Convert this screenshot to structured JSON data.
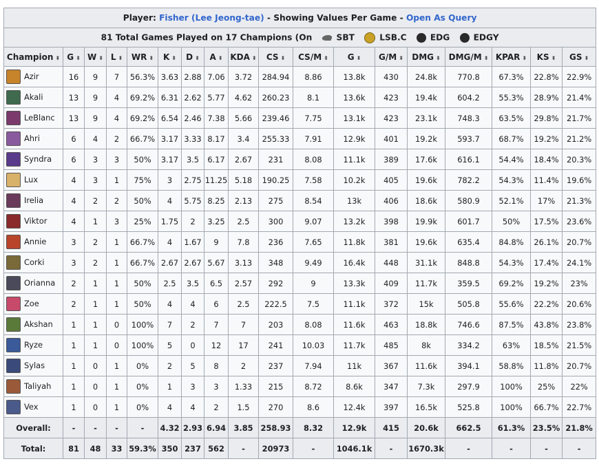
{
  "header": {
    "prefix": "Player: ",
    "player": "Fisher (Lee Jeong-tae)",
    "middle": " - Showing Values Per Game - ",
    "query_link": "Open As Query"
  },
  "summary": {
    "text": "81 Total Games Played on 17 Champions (On",
    "teams": [
      {
        "name": "SBT",
        "color": "#6b6b6b",
        "icon": "sbt-logo"
      },
      {
        "name": "LSB.C",
        "color": "#c9a227",
        "icon": "lsb-logo"
      },
      {
        "name": "EDG",
        "color": "#2a2a2a",
        "icon": "edg-logo"
      },
      {
        "name": "EDGY",
        "color": "#2a2a2a",
        "icon": "edgy-logo"
      }
    ]
  },
  "columns": [
    "Champion",
    "G",
    "W",
    "L",
    "WR",
    "K",
    "D",
    "A",
    "KDA",
    "CS",
    "CS/M",
    "G",
    "G/M",
    "DMG",
    "DMG/M",
    "KPAR",
    "KS",
    "GS"
  ],
  "rows": [
    {
      "champion": "Azir",
      "icon_color": "#c8842a",
      "stats": [
        "16",
        "9",
        "7",
        "56.3%",
        "3.63",
        "2.88",
        "7.06",
        "3.72",
        "284.94",
        "8.86",
        "13.8k",
        "430",
        "24.8k",
        "770.8",
        "67.3%",
        "22.8%",
        "22.9%"
      ]
    },
    {
      "champion": "Akali",
      "icon_color": "#3f6a4e",
      "stats": [
        "13",
        "9",
        "4",
        "69.2%",
        "6.31",
        "2.62",
        "5.77",
        "4.62",
        "260.23",
        "8.1",
        "13.6k",
        "423",
        "19.4k",
        "604.2",
        "55.3%",
        "28.9%",
        "21.4%"
      ]
    },
    {
      "champion": "LeBlanc",
      "icon_color": "#7a3a6b",
      "stats": [
        "13",
        "9",
        "4",
        "69.2%",
        "6.54",
        "2.46",
        "7.38",
        "5.66",
        "239.46",
        "7.75",
        "13.1k",
        "423",
        "23.1k",
        "748.3",
        "63.5%",
        "29.8%",
        "21.7%"
      ]
    },
    {
      "champion": "Ahri",
      "icon_color": "#8a5a9e",
      "stats": [
        "6",
        "4",
        "2",
        "66.7%",
        "3.17",
        "3.33",
        "8.17",
        "3.4",
        "255.33",
        "7.91",
        "12.9k",
        "401",
        "19.2k",
        "593.7",
        "68.7%",
        "19.2%",
        "21.2%"
      ]
    },
    {
      "champion": "Syndra",
      "icon_color": "#5a3a8a",
      "stats": [
        "6",
        "3",
        "3",
        "50%",
        "3.17",
        "3.5",
        "6.17",
        "2.67",
        "231",
        "8.08",
        "11.1k",
        "389",
        "17.6k",
        "616.1",
        "54.4%",
        "18.4%",
        "20.3%"
      ]
    },
    {
      "champion": "Lux",
      "icon_color": "#d9b26a",
      "stats": [
        "4",
        "3",
        "1",
        "75%",
        "3",
        "2.75",
        "11.25",
        "5.18",
        "190.25",
        "7.58",
        "10.2k",
        "405",
        "19.6k",
        "782.2",
        "54.3%",
        "11.4%",
        "19.6%"
      ]
    },
    {
      "champion": "Irelia",
      "icon_color": "#6a3a5a",
      "stats": [
        "4",
        "2",
        "2",
        "50%",
        "4",
        "5.75",
        "8.25",
        "2.13",
        "275",
        "8.54",
        "13k",
        "406",
        "18.6k",
        "580.9",
        "52.1%",
        "17%",
        "21.3%"
      ]
    },
    {
      "champion": "Viktor",
      "icon_color": "#8a2a2a",
      "stats": [
        "4",
        "1",
        "3",
        "25%",
        "1.75",
        "2",
        "3.25",
        "2.5",
        "300",
        "9.07",
        "13.2k",
        "398",
        "19.9k",
        "601.7",
        "50%",
        "17.5%",
        "23.6%"
      ]
    },
    {
      "champion": "Annie",
      "icon_color": "#b8452a",
      "stats": [
        "3",
        "2",
        "1",
        "66.7%",
        "4",
        "1.67",
        "9",
        "7.8",
        "236",
        "7.65",
        "11.8k",
        "381",
        "19.6k",
        "635.4",
        "84.8%",
        "26.1%",
        "20.7%"
      ]
    },
    {
      "champion": "Corki",
      "icon_color": "#7a6a3a",
      "stats": [
        "3",
        "2",
        "1",
        "66.7%",
        "2.67",
        "2.67",
        "5.67",
        "3.13",
        "348",
        "9.49",
        "16.4k",
        "448",
        "31.1k",
        "848.8",
        "54.3%",
        "17.4%",
        "24.1%"
      ]
    },
    {
      "champion": "Orianna",
      "icon_color": "#4a4a5a",
      "stats": [
        "2",
        "1",
        "1",
        "50%",
        "2.5",
        "3.5",
        "6.5",
        "2.57",
        "292",
        "9",
        "13.3k",
        "409",
        "11.7k",
        "359.5",
        "69.2%",
        "19.2%",
        "23%"
      ]
    },
    {
      "champion": "Zoe",
      "icon_color": "#c84a6a",
      "stats": [
        "2",
        "1",
        "1",
        "50%",
        "4",
        "4",
        "6",
        "2.5",
        "222.5",
        "7.5",
        "11.1k",
        "372",
        "15k",
        "505.8",
        "55.6%",
        "22.2%",
        "20.6%"
      ]
    },
    {
      "champion": "Akshan",
      "icon_color": "#5a7a3a",
      "stats": [
        "1",
        "1",
        "0",
        "100%",
        "7",
        "2",
        "7",
        "7",
        "203",
        "8.08",
        "11.6k",
        "463",
        "18.8k",
        "746.6",
        "87.5%",
        "43.8%",
        "23.8%"
      ]
    },
    {
      "champion": "Ryze",
      "icon_color": "#3a5a9a",
      "stats": [
        "1",
        "1",
        "0",
        "100%",
        "5",
        "0",
        "12",
        "17",
        "241",
        "10.03",
        "11.7k",
        "485",
        "8k",
        "334.2",
        "63%",
        "18.5%",
        "21.5%"
      ]
    },
    {
      "champion": "Sylas",
      "icon_color": "#3a4a7a",
      "stats": [
        "1",
        "0",
        "1",
        "0%",
        "2",
        "5",
        "8",
        "2",
        "237",
        "7.94",
        "11k",
        "367",
        "11.6k",
        "394.1",
        "58.8%",
        "11.8%",
        "20.7%"
      ]
    },
    {
      "champion": "Taliyah",
      "icon_color": "#9a5a3a",
      "stats": [
        "1",
        "0",
        "1",
        "0%",
        "1",
        "3",
        "3",
        "1.33",
        "215",
        "8.72",
        "8.6k",
        "347",
        "7.3k",
        "297.9",
        "100%",
        "25%",
        "22%"
      ]
    },
    {
      "champion": "Vex",
      "icon_color": "#4a5a8a",
      "stats": [
        "1",
        "0",
        "1",
        "0%",
        "4",
        "4",
        "2",
        "1.5",
        "270",
        "8.6",
        "12.4k",
        "397",
        "16.5k",
        "525.8",
        "100%",
        "66.7%",
        "22.7%"
      ]
    }
  ],
  "overall": {
    "label": "Overall:",
    "stats": [
      "-",
      "-",
      "-",
      "-",
      "4.32",
      "2.93",
      "6.94",
      "3.85",
      "258.93",
      "8.32",
      "12.9k",
      "415",
      "20.6k",
      "662.5",
      "61.3%",
      "23.5%",
      "21.8%"
    ]
  },
  "total": {
    "label": "Total:",
    "stats": [
      "81",
      "48",
      "33",
      "59.3%",
      "350",
      "237",
      "562",
      "-",
      "20973",
      "-",
      "1046.1k",
      "-",
      "1670.3k",
      "-",
      "-",
      "-",
      "-"
    ]
  }
}
